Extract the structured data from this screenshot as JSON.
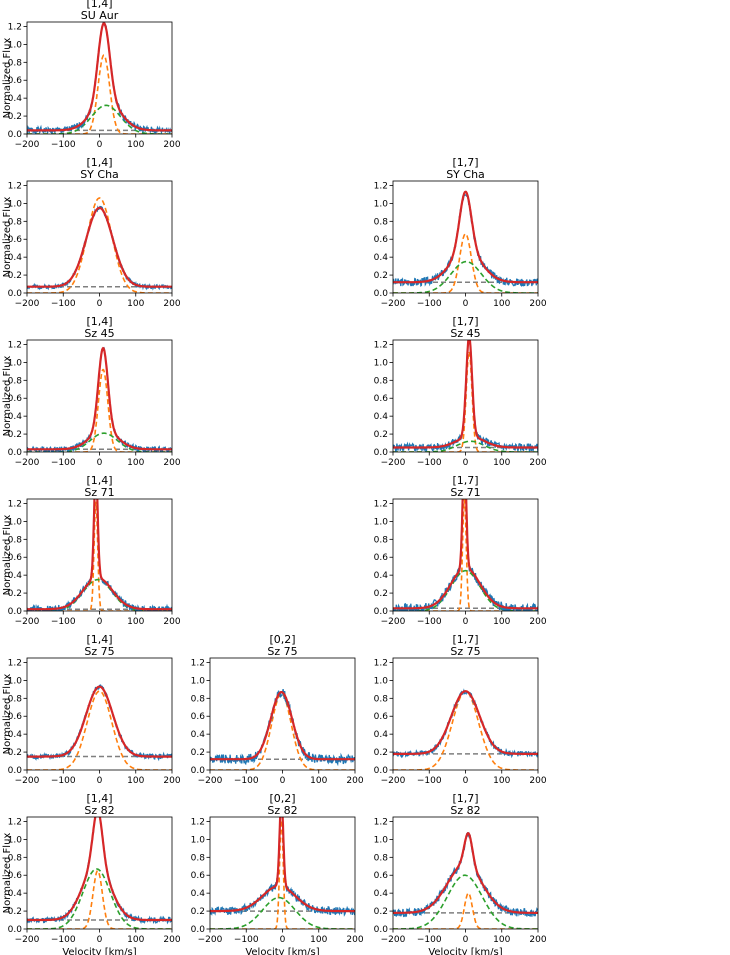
{
  "figure": {
    "ylabel": "Normalized Flux",
    "xlabel": "Velocity [km/s]",
    "xticks": [
      "-200",
      "-100",
      "0",
      "100",
      "200"
    ],
    "yticks": [
      "0.0",
      "0.2",
      "0.4",
      "0.6",
      "0.8",
      "1.0",
      "1.2"
    ],
    "colors": {
      "data": "#1f77b4",
      "fit": "#d62728",
      "narrow": "#ff7f0e",
      "broad": "#2ca02c",
      "continuum": "#7f7f7f"
    }
  },
  "chart_data": [
    {
      "type": "line",
      "row": 0,
      "col": 0,
      "title": "[1,4]",
      "subtitle": "SU Aur",
      "xlim": [
        -200,
        200
      ],
      "ylim": [
        0,
        1.25
      ],
      "continuum": 0.04,
      "components": [
        {
          "name": "narrow",
          "amp": 0.88,
          "center": 12,
          "sigma": 16
        },
        {
          "name": "broad",
          "amp": 0.32,
          "center": 18,
          "sigma": 40
        }
      ],
      "noise": 0.025,
      "seed": 1
    },
    {
      "type": "line",
      "row": 1,
      "col": 0,
      "title": "[1,4]",
      "subtitle": "SY Cha",
      "xlim": [
        -200,
        200
      ],
      "ylim": [
        0,
        1.25
      ],
      "continuum": 0.07,
      "components": [
        {
          "name": "narrow",
          "amp": 1.06,
          "center": 0,
          "sigma": 34
        }
      ],
      "fitAmp": 0.88,
      "noise": 0.015,
      "seed": 2
    },
    {
      "type": "line",
      "row": 1,
      "col": 2,
      "title": "[1,7]",
      "subtitle": "SY Cha",
      "xlim": [
        -200,
        200
      ],
      "ylim": [
        0,
        1.25
      ],
      "continuum": 0.12,
      "components": [
        {
          "name": "narrow",
          "amp": 0.66,
          "center": 0,
          "sigma": 16
        },
        {
          "name": "broad",
          "amp": 0.35,
          "center": 2,
          "sigma": 42
        }
      ],
      "noise": 0.03,
      "seed": 3
    },
    {
      "type": "line",
      "row": 2,
      "col": 0,
      "title": "[1,4]",
      "subtitle": "Sz 45",
      "xlim": [
        -200,
        200
      ],
      "ylim": [
        0,
        1.25
      ],
      "continuum": 0.03,
      "components": [
        {
          "name": "narrow",
          "amp": 0.92,
          "center": 10,
          "sigma": 13
        },
        {
          "name": "broad",
          "amp": 0.21,
          "center": 12,
          "sigma": 38
        }
      ],
      "noise": 0.02,
      "seed": 4
    },
    {
      "type": "line",
      "row": 2,
      "col": 2,
      "title": "[1,7]",
      "subtitle": "Sz 45",
      "xlim": [
        -200,
        200
      ],
      "ylim": [
        0,
        1.25
      ],
      "continuum": 0.05,
      "components": [
        {
          "name": "narrow",
          "amp": 1.12,
          "center": 10,
          "sigma": 8
        },
        {
          "name": "broad",
          "amp": 0.12,
          "center": 14,
          "sigma": 38
        }
      ],
      "noise": 0.03,
      "seed": 5
    },
    {
      "type": "line",
      "row": 3,
      "col": 0,
      "title": "[1,4]",
      "subtitle": "Sz 71",
      "xlim": [
        -200,
        200
      ],
      "ylim": [
        0,
        1.25
      ],
      "continuum": 0.02,
      "components": [
        {
          "name": "narrow",
          "amp": 1.22,
          "center": -10,
          "sigma": 5
        },
        {
          "name": "broad",
          "amp": 0.35,
          "center": -5,
          "sigma": 40
        }
      ],
      "noise": 0.025,
      "seed": 6
    },
    {
      "type": "line",
      "row": 3,
      "col": 2,
      "title": "[1,7]",
      "subtitle": "Sz 71",
      "xlim": [
        -200,
        200
      ],
      "ylim": [
        0,
        1.25
      ],
      "continuum": 0.03,
      "components": [
        {
          "name": "narrow",
          "amp": 1.25,
          "center": -3,
          "sigma": 5
        },
        {
          "name": "broad",
          "amp": 0.45,
          "center": 0,
          "sigma": 40
        }
      ],
      "noise": 0.035,
      "seed": 7
    },
    {
      "type": "line",
      "row": 4,
      "col": 0,
      "title": "[1,4]",
      "subtitle": "Sz 75",
      "xlim": [
        -200,
        200
      ],
      "ylim": [
        0,
        1.25
      ],
      "continuum": 0.15,
      "components": [
        {
          "name": "narrow",
          "amp": 0.88,
          "center": 0,
          "sigma": 34
        }
      ],
      "fitAmp": 0.78,
      "noise": 0.02,
      "seed": 8
    },
    {
      "type": "line",
      "row": 4,
      "col": 1,
      "title": "[0,2]",
      "subtitle": "Sz 75",
      "xlim": [
        -200,
        200
      ],
      "ylim": [
        0,
        1.25
      ],
      "continuum": 0.12,
      "components": [
        {
          "name": "narrow",
          "amp": 0.85,
          "center": -3,
          "sigma": 27
        }
      ],
      "fitAmp": 0.75,
      "noise": 0.035,
      "seed": 9
    },
    {
      "type": "line",
      "row": 4,
      "col": 2,
      "title": "[1,7]",
      "subtitle": "Sz 75",
      "xlim": [
        -200,
        200
      ],
      "ylim": [
        0,
        1.25
      ],
      "continuum": 0.18,
      "components": [
        {
          "name": "narrow",
          "amp": 0.88,
          "center": 0,
          "sigma": 36
        }
      ],
      "fitAmp": 0.7,
      "noise": 0.02,
      "seed": 10
    },
    {
      "type": "line",
      "row": 5,
      "col": 0,
      "title": "[1,4]",
      "subtitle": "Sz 82",
      "xlim": [
        -200,
        200
      ],
      "ylim": [
        0,
        1.25
      ],
      "continuum": 0.1,
      "components": [
        {
          "name": "narrow",
          "amp": 0.65,
          "center": -5,
          "sigma": 13
        },
        {
          "name": "broad",
          "amp": 0.67,
          "center": -8,
          "sigma": 38
        }
      ],
      "fitScale": 0.93,
      "noise": 0.02,
      "seed": 11
    },
    {
      "type": "line",
      "row": 5,
      "col": 1,
      "title": "[0,2]",
      "subtitle": "Sz 82",
      "xlim": [
        -200,
        200
      ],
      "ylim": [
        0,
        1.25
      ],
      "continuum": 0.2,
      "components": [
        {
          "name": "narrow",
          "amp": 1.22,
          "center": -3,
          "sigma": 5
        },
        {
          "name": "broad",
          "amp": 0.35,
          "center": -10,
          "sigma": 45
        }
      ],
      "fitScale": 0.8,
      "noise": 0.03,
      "seed": 12
    },
    {
      "type": "line",
      "row": 5,
      "col": 2,
      "title": "[1,7]",
      "subtitle": "Sz 82",
      "xlim": [
        -200,
        200
      ],
      "ylim": [
        0,
        1.25
      ],
      "continuum": 0.18,
      "components": [
        {
          "name": "narrow",
          "amp": 0.4,
          "center": 8,
          "sigma": 11
        },
        {
          "name": "broad",
          "amp": 0.6,
          "center": -2,
          "sigma": 48
        }
      ],
      "fitScale": 0.9,
      "noise": 0.03,
      "seed": 13
    }
  ]
}
